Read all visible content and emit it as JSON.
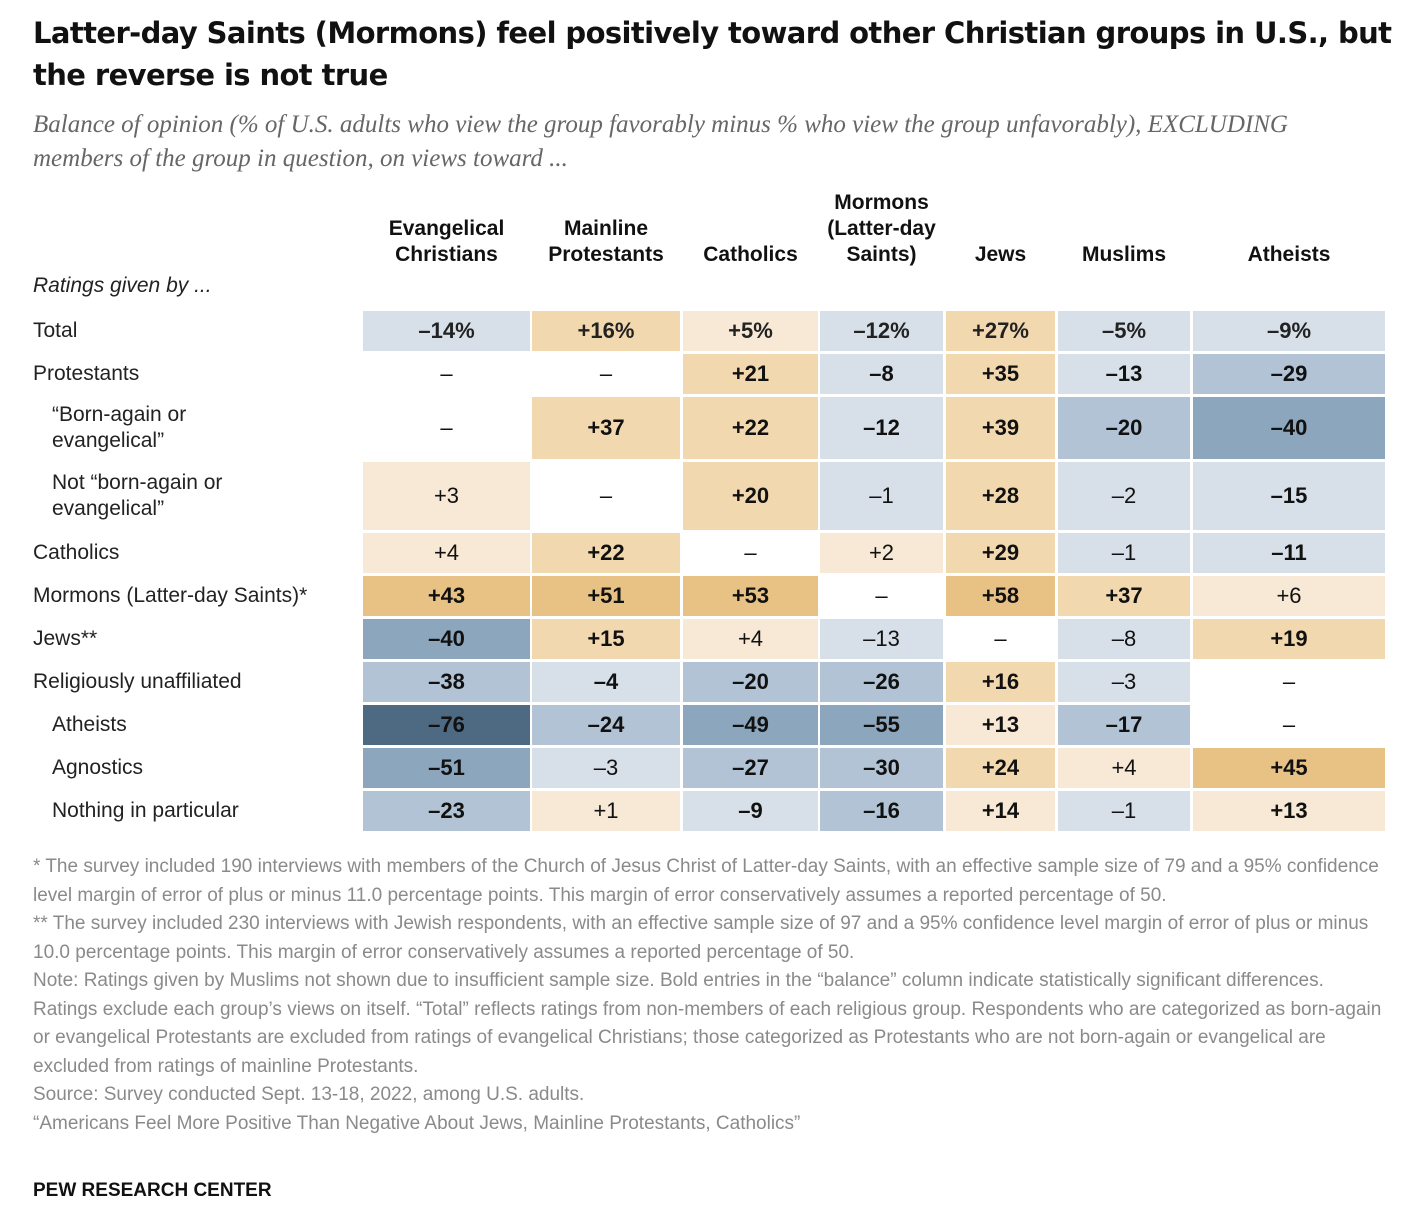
{
  "title": "Latter-day Saints (Mormons) feel positively toward other Christian groups in U.S., but the reverse is not true",
  "subtitle": "Balance of opinion (% of U.S. adults who view the group favorably minus % who view the group unfavorably), EXCLUDING members of the group in question, on views toward ...",
  "rated_by_label": "Ratings given by ...",
  "colors": {
    "neg_light": "#d7e0e8",
    "neg_mid": "#b1c3d4",
    "neg_dark": "#8ba6bd",
    "neg_darkest": "#4e6982",
    "pos_light": "#f8e9d6",
    "pos_mid": "#f2d8ae",
    "pos_dark": "#e8c285",
    "none": "#ffffff"
  },
  "chart_data": {
    "type": "table",
    "columns": [
      "Evangelical Christians",
      "Mainline Protestants",
      "Catholics",
      "Mormons (Latter-day Saints)",
      "Jews",
      "Muslims",
      "Atheists"
    ],
    "rows": [
      {
        "label": "Total",
        "indent": 0,
        "values": [
          "–14%",
          "+16%",
          "+5%",
          "–12%",
          "+27%",
          "–5%",
          "–9%"
        ],
        "bold": [
          1,
          1,
          1,
          1,
          1,
          1,
          1
        ]
      },
      {
        "label": "Protestants",
        "indent": 0,
        "values": [
          "–",
          "–",
          "+21",
          "–8",
          "+35",
          "–13",
          "–29"
        ],
        "bold": [
          0,
          0,
          1,
          1,
          1,
          1,
          1
        ]
      },
      {
        "label": "“Born-again or evangelical”",
        "indent": 1,
        "values": [
          "–",
          "+37",
          "+22",
          "–12",
          "+39",
          "–20",
          "–40"
        ],
        "bold": [
          0,
          1,
          1,
          1,
          1,
          1,
          1
        ]
      },
      {
        "label": "Not “born-again or evangelical”",
        "indent": 1,
        "values": [
          "+3",
          "–",
          "+20",
          "–1",
          "+28",
          "–2",
          "–15"
        ],
        "bold": [
          0,
          0,
          1,
          0,
          1,
          0,
          1
        ]
      },
      {
        "label": "Catholics",
        "indent": 0,
        "values": [
          "+4",
          "+22",
          "–",
          "+2",
          "+29",
          "–1",
          "–11"
        ],
        "bold": [
          0,
          1,
          0,
          0,
          1,
          0,
          1
        ]
      },
      {
        "label": "Mormons (Latter-day Saints)*",
        "indent": 0,
        "values": [
          "+43",
          "+51",
          "+53",
          "–",
          "+58",
          "+37",
          "+6"
        ],
        "bold": [
          1,
          1,
          1,
          0,
          1,
          1,
          0
        ]
      },
      {
        "label": "Jews**",
        "indent": 0,
        "values": [
          "–40",
          "+15",
          "+4",
          "–13",
          "–",
          "–8",
          "+19"
        ],
        "bold": [
          1,
          1,
          0,
          0,
          0,
          0,
          1
        ]
      },
      {
        "label": "Religiously unaffiliated",
        "indent": 0,
        "values": [
          "–38",
          "–4",
          "–20",
          "–26",
          "+16",
          "–3",
          "–"
        ],
        "bold": [
          1,
          1,
          1,
          1,
          1,
          0,
          0
        ]
      },
      {
        "label": "Atheists",
        "indent": 1,
        "values": [
          "–76",
          "–24",
          "–49",
          "–55",
          "+13",
          "–17",
          "–"
        ],
        "bold": [
          1,
          1,
          1,
          1,
          1,
          1,
          0
        ]
      },
      {
        "label": "Agnostics",
        "indent": 1,
        "values": [
          "–51",
          "–3",
          "–27",
          "–30",
          "+24",
          "+4",
          "+45"
        ],
        "bold": [
          1,
          0,
          1,
          1,
          1,
          0,
          1
        ]
      },
      {
        "label": "Nothing in particular",
        "indent": 1,
        "values": [
          "–23",
          "+1",
          "–9",
          "–16",
          "+14",
          "–1",
          "+13"
        ],
        "bold": [
          1,
          0,
          1,
          1,
          1,
          0,
          1
        ]
      }
    ]
  },
  "notes": [
    "* The survey included 190 interviews with members of the Church of Jesus Christ of Latter-day Saints, with an effective sample size of 79 and a 95% confidence level margin of error of plus or minus 11.0 percentage points. This margin of error conservatively assumes a reported percentage of 50.",
    "** The survey included 230 interviews with Jewish respondents, with an effective sample size of 97 and a 95% confidence level margin of error of plus or minus 10.0 percentage points. This margin of error conservatively assumes a reported percentage of 50.",
    "Note: Ratings given by Muslims not shown due to insufficient sample size. Bold entries in the “balance” column indicate statistically significant differences. Ratings exclude each group’s views on itself. “Total” reflects ratings from non-members of each religious group. Respondents who are categorized as born-again or evangelical Protestants are excluded from ratings of evangelical Christians; those categorized as Protestants who are not born-again or evangelical are excluded from ratings of mainline Protestants.",
    "Source: Survey conducted Sept. 13-18, 2022, among U.S. adults.",
    "“Americans Feel More Positive Than Negative About Jews, Mainline Protestants, Catholics”"
  ],
  "brand": "PEW RESEARCH CENTER"
}
